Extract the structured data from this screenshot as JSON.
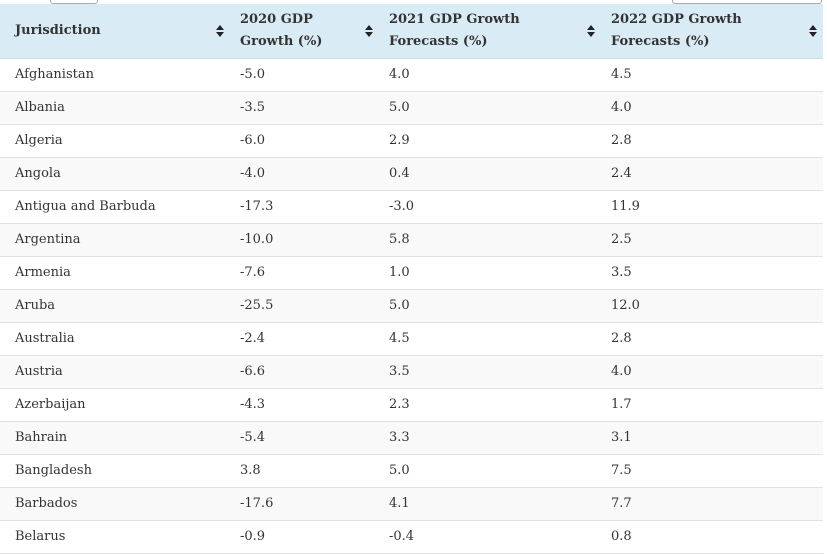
{
  "table": {
    "headers": [
      "Jurisdiction",
      "2020 GDP Growth (%)",
      "2021 GDP Growth Forecasts (%)",
      "2022 GDP Growth Forecasts (%)"
    ],
    "rows": [
      [
        "Afghanistan",
        "-5.0",
        "4.0",
        "4.5"
      ],
      [
        "Albania",
        "-3.5",
        "5.0",
        "4.0"
      ],
      [
        "Algeria",
        "-6.0",
        "2.9",
        "2.8"
      ],
      [
        "Angola",
        "-4.0",
        "0.4",
        "2.4"
      ],
      [
        "Antigua and Barbuda",
        "-17.3",
        "-3.0",
        "11.9"
      ],
      [
        "Argentina",
        "-10.0",
        "5.8",
        "2.5"
      ],
      [
        "Armenia",
        "-7.6",
        "1.0",
        "3.5"
      ],
      [
        "Aruba",
        "-25.5",
        "5.0",
        "12.0"
      ],
      [
        "Australia",
        "-2.4",
        "4.5",
        "2.8"
      ],
      [
        "Austria",
        "-6.6",
        "3.5",
        "4.0"
      ],
      [
        "Azerbaijan",
        "-4.3",
        "2.3",
        "1.7"
      ],
      [
        "Bahrain",
        "-5.4",
        "3.3",
        "3.1"
      ],
      [
        "Bangladesh",
        "3.8",
        "5.0",
        "7.5"
      ],
      [
        "Barbados",
        "-17.6",
        "4.1",
        "7.7"
      ],
      [
        "Belarus",
        "-0.9",
        "-0.4",
        "0.8"
      ]
    ]
  }
}
